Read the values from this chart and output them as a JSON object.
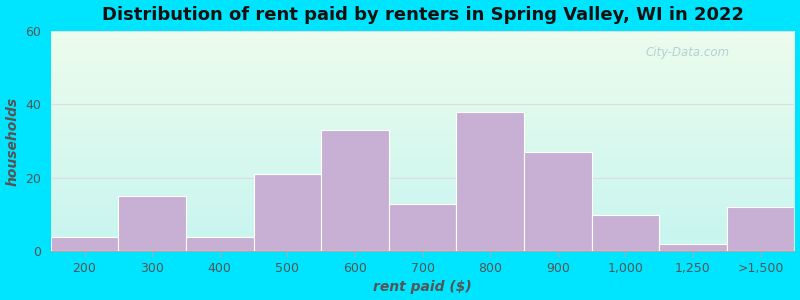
{
  "categories": [
    "200",
    "300",
    "400",
    "500",
    "600",
    "700",
    "800",
    "900",
    "1,000",
    "1,250",
    ">1,500"
  ],
  "values": [
    4,
    15,
    4,
    21,
    33,
    13,
    38,
    27,
    10,
    2,
    12
  ],
  "bar_color": "#c8afd4",
  "bar_edge_color": "#ffffff",
  "title": "Distribution of rent paid by renters in Spring Valley, WI in 2022",
  "xlabel": "rent paid ($)",
  "ylabel": "households",
  "ylim": [
    0,
    60
  ],
  "yticks": [
    0,
    20,
    40,
    60
  ],
  "title_fontsize": 13,
  "label_fontsize": 10,
  "tick_fontsize": 9,
  "outer_color": "#00e5ff",
  "bg_top_color": "#edfaed",
  "bg_bottom_color": "#c8f5f0",
  "grid_color": "#dddddd",
  "watermark_text": "City-Data.com",
  "watermark_color": "#aacccc",
  "spine_color": "#aaaaaa",
  "tick_color": "#555555",
  "label_color": "#555555"
}
